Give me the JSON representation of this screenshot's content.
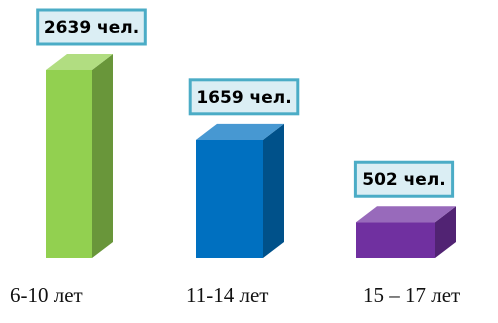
{
  "chart_data": {
    "type": "bar",
    "style": "3d-column",
    "categories": [
      "6-10 лет",
      "11-14 лет",
      "15 – 17 лет"
    ],
    "values": [
      2639,
      1659,
      502
    ],
    "data_labels": [
      "2639 чел.",
      "1659 чел.",
      "502 чел."
    ],
    "colors": {
      "bars": [
        "#92d050",
        "#0070c0",
        "#7030a0"
      ],
      "label_border": "#4bacc6",
      "label_fill": "#dbeef4"
    },
    "axes_visible": false,
    "grid": false,
    "legend": "none"
  }
}
